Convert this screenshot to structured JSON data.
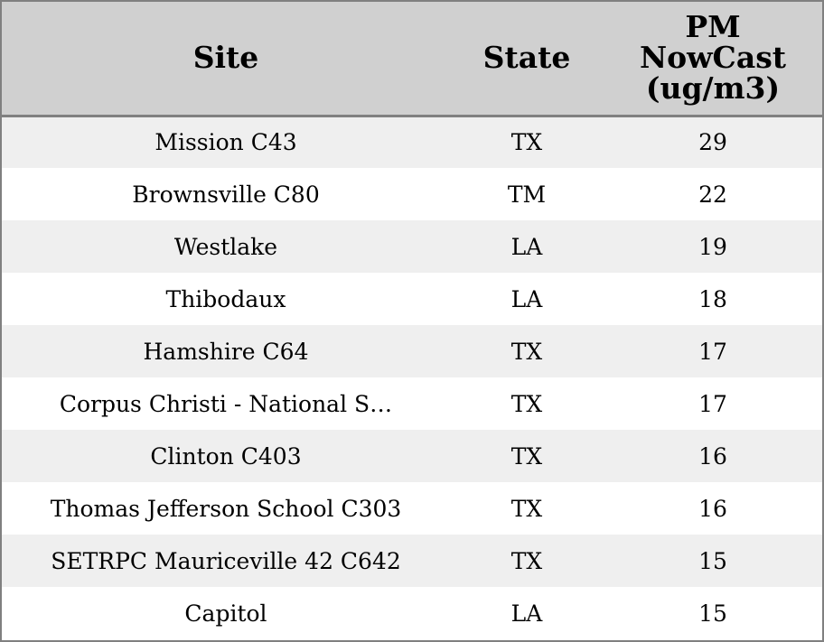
{
  "table": {
    "headers": [
      "Site",
      "State",
      "PM\nNowCast\n(ug/m3)"
    ],
    "rows": [
      {
        "site": "Mission C43",
        "state": "TX",
        "pm": "29"
      },
      {
        "site": "Brownsville C80",
        "state": "TM",
        "pm": "22"
      },
      {
        "site": "Westlake",
        "state": "LA",
        "pm": "19"
      },
      {
        "site": "Thibodaux",
        "state": "LA",
        "pm": "18"
      },
      {
        "site": "Hamshire C64",
        "state": "TX",
        "pm": "17"
      },
      {
        "site": "Corpus Christi - National S…",
        "state": "TX",
        "pm": "17"
      },
      {
        "site": "Clinton C403",
        "state": "TX",
        "pm": "16"
      },
      {
        "site": "Thomas Jefferson School C303",
        "state": "TX",
        "pm": "16"
      },
      {
        "site": "SETRPC Mauriceville 42 C642",
        "state": "TX",
        "pm": "15"
      },
      {
        "site": "Capitol",
        "state": "LA",
        "pm": "15"
      }
    ]
  },
  "colors": {
    "header_bg": "#d0d0d0",
    "row_alt_bg": "#efefef",
    "row_bg": "#ffffff",
    "border": "#808080"
  }
}
